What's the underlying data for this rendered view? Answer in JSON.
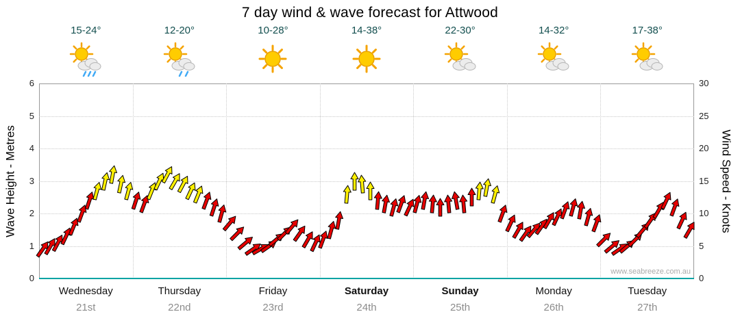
{
  "title": "7 day wind & wave forecast for Attwood",
  "watermark": "www.seabreeze.com.au",
  "colors": {
    "wind_low": "#e60000",
    "wind_high": "#fff000",
    "wave": "#00a3a3",
    "temp_text": "#134f4f",
    "day_text": "#111111",
    "date_text": "#8c8c8c",
    "grid": "#c9c9c9",
    "frame": "#999999"
  },
  "axes": {
    "left_label": "Wave Height - Metres",
    "right_label": "Wind Speed - Knots",
    "left_ticks": [
      0,
      1,
      2,
      3,
      4,
      5,
      6
    ],
    "right_ticks": [
      0,
      5,
      10,
      15,
      20,
      25,
      30
    ]
  },
  "days": [
    {
      "name": "Wednesday",
      "date": "21st",
      "temp": "15-24°",
      "icon": "sun-cloud-showers",
      "bold": false
    },
    {
      "name": "Thursday",
      "date": "22nd",
      "temp": "12-20°",
      "icon": "sun-cloud-light-shower",
      "bold": false
    },
    {
      "name": "Friday",
      "date": "23rd",
      "temp": "10-28°",
      "icon": "sunny",
      "bold": false
    },
    {
      "name": "Saturday",
      "date": "24th",
      "temp": "14-38°",
      "icon": "sunny",
      "bold": true
    },
    {
      "name": "Sunday",
      "date": "25th",
      "temp": "22-30°",
      "icon": "sun-cloud",
      "bold": true
    },
    {
      "name": "Monday",
      "date": "26th",
      "temp": "14-32°",
      "icon": "sun-cloud",
      "bold": false
    },
    {
      "name": "Tuesday",
      "date": "27th",
      "temp": "17-38°",
      "icon": "sun-cloud",
      "bold": false
    }
  ],
  "chart_data": {
    "type": "line",
    "title": "7 day wind & wave forecast for Attwood",
    "x_categories": [
      "Wednesday 21st",
      "Thursday 22nd",
      "Friday 23rd",
      "Saturday 24th",
      "Sunday 25th",
      "Monday 26th",
      "Tuesday 27th"
    ],
    "y_left": {
      "label": "Wave Height - Metres",
      "range": [
        0,
        6
      ],
      "ticks": [
        0,
        1,
        2,
        3,
        4,
        5,
        6
      ]
    },
    "y_right": {
      "label": "Wind Speed - Knots",
      "range": [
        0,
        30
      ],
      "ticks": [
        0,
        5,
        10,
        15,
        20,
        25,
        30
      ]
    },
    "gridlines": true,
    "legend": "none",
    "series": [
      {
        "name": "Wind Speed",
        "unit": "knots",
        "axis": "right",
        "style": "direction-arrows",
        "color_rule": {
          "threshold_knots": 13,
          "below": "wind_low",
          "at_or_above": "wind_high"
        },
        "days": [
          {
            "day": "Wednesday",
            "knots": [
              4.5,
              5,
              5.5,
              6.5,
              8,
              10,
              12,
              13.5,
              15,
              16,
              14.5,
              13.5
            ],
            "dir_deg": [
              35,
              30,
              28,
              25,
              22,
              20,
              18,
              15,
              12,
              10,
              12,
              15
            ]
          },
          {
            "day": "Thursday",
            "knots": [
              12,
              11.5,
              13.5,
              15,
              16,
              15,
              14.5,
              13.5,
              13,
              12,
              11,
              10
            ],
            "dir_deg": [
              18,
              20,
              22,
              25,
              28,
              30,
              28,
              25,
              22,
              20,
              18,
              15
            ]
          },
          {
            "day": "Friday",
            "knots": [
              8.5,
              7,
              5.5,
              4.5,
              4.5,
              5,
              6,
              7,
              8,
              7,
              6,
              5.5
            ],
            "dir_deg": [
              40,
              45,
              50,
              55,
              60,
              55,
              50,
              45,
              40,
              35,
              30,
              25
            ]
          },
          {
            "day": "Saturday",
            "knots": [
              6,
              7.5,
              9,
              13,
              15,
              14.5,
              13.5,
              12,
              11.5,
              11,
              11.5,
              11
            ],
            "dir_deg": [
              20,
              15,
              10,
              5,
              0,
              -5,
              0,
              5,
              10,
              15,
              20,
              25
            ]
          },
          {
            "day": "Sunday",
            "knots": [
              11.5,
              12,
              11.5,
              11,
              11.5,
              12,
              11.5,
              12.5,
              13.5,
              14,
              13,
              10
            ],
            "dir_deg": [
              15,
              10,
              5,
              0,
              -5,
              -10,
              -5,
              0,
              5,
              10,
              15,
              20
            ]
          },
          {
            "day": "Monday",
            "knots": [
              8.5,
              7.5,
              7,
              7.5,
              8,
              9,
              9.5,
              10.5,
              11,
              10.5,
              9.5,
              8.5
            ],
            "dir_deg": [
              25,
              30,
              35,
              40,
              35,
              30,
              25,
              20,
              15,
              10,
              15,
              20
            ]
          },
          {
            "day": "Tuesday",
            "knots": [
              6,
              5,
              4.5,
              5,
              6,
              7.5,
              9,
              10.5,
              12,
              11,
              9,
              7.5
            ],
            "dir_deg": [
              45,
              50,
              55,
              50,
              45,
              40,
              35,
              30,
              25,
              20,
              25,
              30
            ]
          }
        ]
      },
      {
        "name": "Wave Height",
        "unit": "metres",
        "axis": "left",
        "values_per_day": [
          0,
          0,
          0,
          0,
          0,
          0,
          0
        ]
      }
    ]
  }
}
